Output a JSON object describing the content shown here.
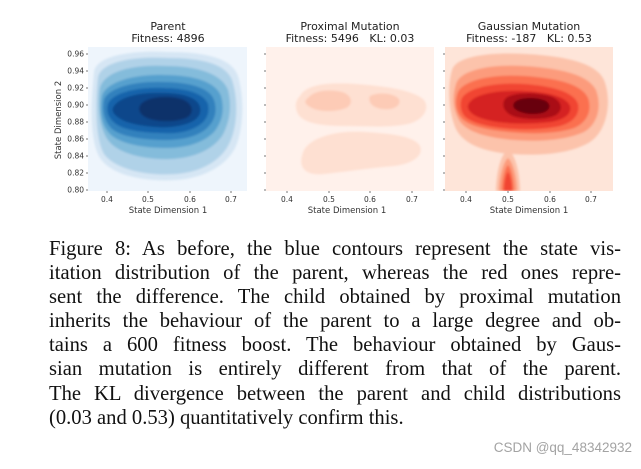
{
  "chart_data": [
    {
      "type": "contour",
      "title_line1": "Parent",
      "title_line2": "Fitness: 4896",
      "xlabel": "State Dimension 1",
      "ylabel": "State Dimension 2",
      "xticks": [
        "0.4",
        "0.5",
        "0.6",
        "0.7"
      ],
      "yticks": [
        "0.96",
        "0.94",
        "0.92",
        "0.90",
        "0.88",
        "0.86",
        "0.84",
        "0.82",
        "0.80"
      ],
      "xlim": [
        0.33,
        0.75
      ],
      "ylim": [
        0.8,
        0.965
      ],
      "colormap": "Blues",
      "colors": [
        "#eef5fc",
        "#d6e6f4",
        "#b0d2e8",
        "#84bcdb",
        "#57a0ce",
        "#3181bd",
        "#1764ab",
        "#08468b",
        "#08306b"
      ],
      "peak": [
        0.54,
        0.895
      ]
    },
    {
      "type": "contour",
      "title_line1": "Proximal Mutation",
      "title_line2": "Fitness: 5496   KL: 0.03",
      "xticks": [
        "0.4",
        "0.5",
        "0.6",
        "0.7"
      ],
      "xlabel": "State Dimension 1",
      "xlim": [
        0.33,
        0.75
      ],
      "ylim": [
        0.8,
        0.965
      ],
      "colormap": "Reds",
      "colors": [
        "#fff1eb",
        "#fee0d2",
        "#fdcbb6"
      ]
    },
    {
      "type": "contour",
      "title_line1": "Gaussian Mutation",
      "title_line2": "Fitness: -187   KL: 0.53",
      "xticks": [
        "0.4",
        "0.5",
        "0.6",
        "0.7"
      ],
      "xlabel": "State Dimension 1",
      "xlim": [
        0.33,
        0.75
      ],
      "ylim": [
        0.8,
        0.965
      ],
      "colormap": "Reds",
      "colors": [
        "#fee5d9",
        "#fcc3ab",
        "#fc9b7c",
        "#fb7050",
        "#f14432",
        "#d52221",
        "#aa1016",
        "#67000d"
      ],
      "peak": [
        0.555,
        0.895
      ]
    }
  ],
  "caption": {
    "lines": [
      "Figure 8: As before, the blue contours represent the state vis-",
      "itation distribution of the parent, whereas the red ones repre-",
      "sent the difference. The child obtained by proximal mutation",
      "inherits the behaviour of the parent to a large degree and ob-",
      "tains a 600 fitness boost. The behaviour obtained by Gaus-",
      "sian mutation is entirely different from that of the parent.",
      "The KL divergence between the parent and child distributions",
      "(0.03 and 0.53) quantitatively confirm this."
    ]
  },
  "watermark": "CSDN @qq_48342932"
}
